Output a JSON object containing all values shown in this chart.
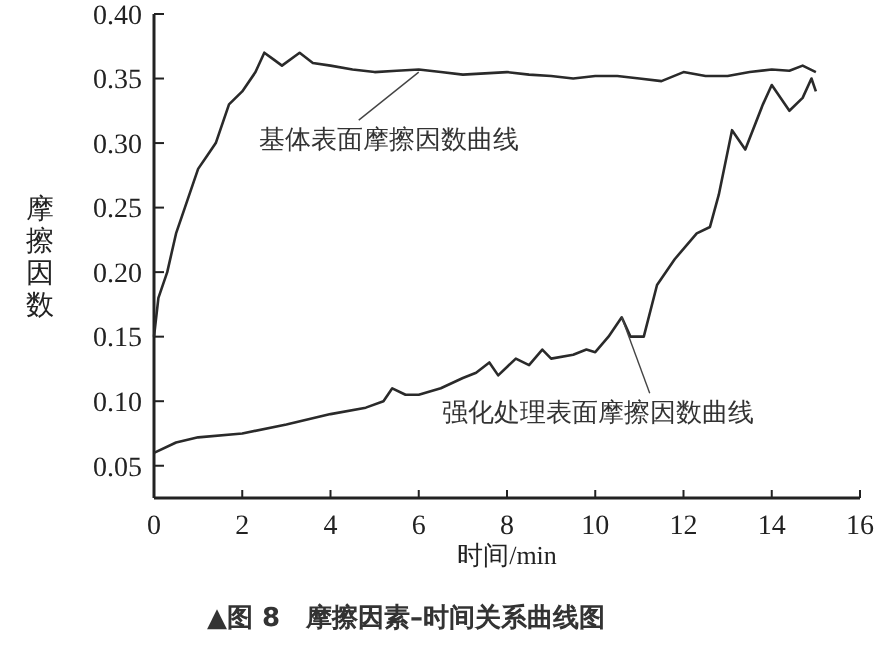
{
  "chart_data": {
    "type": "line",
    "title": "▲图 8　摩擦因素–时间关系曲线图",
    "xlabel": "时间/min",
    "ylabel": "摩擦因数",
    "xlim": [
      0,
      16
    ],
    "xticks": [
      0,
      2,
      4,
      6,
      8,
      10,
      12,
      14,
      16
    ],
    "ylim": [
      0.025,
      0.4
    ],
    "yticks": [
      0.05,
      {
        "value": 0.1,
        "label": "0.10"
      },
      0.15,
      {
        "value": 0.2,
        "label": "0.20"
      },
      0.25,
      {
        "value": 0.3,
        "label": "0.30"
      },
      0.35,
      {
        "value": 0.4,
        "label": "0.40"
      }
    ],
    "grid": false,
    "line_style": "solid",
    "series": [
      {
        "color": "#2a2a2a",
        "x": [
          0,
          0.1,
          0.3,
          0.5,
          0.7,
          1.0,
          1.2,
          1.4,
          1.7,
          2.0,
          2.3,
          2.5,
          2.7,
          2.9,
          3.3,
          3.6,
          4,
          4.5,
          5,
          5.5,
          6,
          6.5,
          7,
          7.5,
          8,
          8.5,
          9,
          9.5,
          10,
          10.5,
          11,
          11.5,
          12,
          12.5,
          13,
          13.5,
          14,
          14.4,
          14.7,
          15
        ],
        "values": [
          0.15,
          0.18,
          0.2,
          0.23,
          0.25,
          0.28,
          0.29,
          0.3,
          0.33,
          0.34,
          0.355,
          0.37,
          0.365,
          0.36,
          0.37,
          0.362,
          0.36,
          0.357,
          0.355,
          0.356,
          0.357,
          0.355,
          0.353,
          0.354,
          0.355,
          0.353,
          0.352,
          0.35,
          0.352,
          0.352,
          0.35,
          0.348,
          0.355,
          0.352,
          0.352,
          0.355,
          0.357,
          0.356,
          0.36,
          0.355
        ]
      },
      {
        "color": "#2a2a2a",
        "x": [
          0,
          0.5,
          1,
          2,
          3,
          4,
          4.8,
          5.2,
          5.4,
          5.7,
          6,
          6.5,
          7,
          7.3,
          7.6,
          7.8,
          8.2,
          8.5,
          8.8,
          9,
          9.5,
          9.8,
          10,
          10.3,
          10.6,
          10.8,
          11.1,
          11.4,
          11.8,
          12.3,
          12.6,
          12.8,
          13.1,
          13.4,
          13.8,
          14,
          14.4,
          14.7,
          14.9,
          15
        ],
        "values": [
          0.06,
          0.068,
          0.072,
          0.075,
          0.082,
          0.09,
          0.095,
          0.1,
          0.11,
          0.105,
          0.105,
          0.11,
          0.118,
          0.122,
          0.13,
          0.12,
          0.133,
          0.128,
          0.14,
          0.133,
          0.136,
          0.14,
          0.138,
          0.15,
          0.165,
          0.15,
          0.15,
          0.19,
          0.21,
          0.23,
          0.235,
          0.26,
          0.31,
          0.295,
          0.33,
          0.345,
          0.325,
          0.335,
          0.35,
          0.34
        ]
      }
    ],
    "annotations": [
      {
        "text": "基体表面摩擦因数曲线",
        "x": 6,
        "y": 0.355
      },
      {
        "text": "强化处理表面摩擦因数曲线",
        "x": 10.6,
        "y": 0.165
      }
    ]
  }
}
